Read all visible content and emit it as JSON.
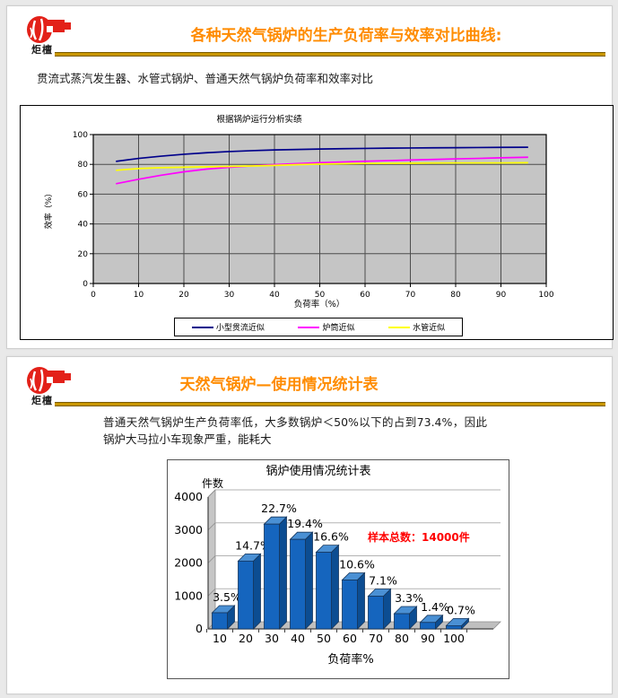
{
  "logo": {
    "brand": "炬檀"
  },
  "slide1": {
    "title": "各种天然气锅炉的生产负荷率与效率对比曲线:",
    "subtitle": "贯流式蒸汽发生器、水管式锅炉、普通天然气锅炉负荷率和效率对比"
  },
  "slide2": {
    "title": "天然气锅炉—使用情况统计表",
    "paragraph": "普通天然气锅炉生产负荷率低，大多数锅炉＜50%以下的占到73.4%，因此锅炉大马拉小车现象严重，能耗大"
  },
  "chart_data": [
    {
      "type": "line",
      "title": "根据锅炉运行分析实绩",
      "xlabel": "负荷率（%）",
      "ylabel": "效率（%）",
      "xlim": [
        0,
        100
      ],
      "ylim": [
        0,
        100
      ],
      "xticks": [
        0,
        10,
        20,
        30,
        40,
        50,
        60,
        70,
        80,
        90,
        100
      ],
      "yticks": [
        0,
        20,
        40,
        60,
        80,
        100
      ],
      "grid": true,
      "plot_bg": "#c5c5c5",
      "grid_color": "#4d4d4d",
      "legend_position": "bottom",
      "x": [
        5,
        10,
        15,
        20,
        25,
        30,
        35,
        40,
        45,
        50,
        55,
        60,
        65,
        70,
        75,
        80,
        85,
        90,
        96
      ],
      "series": [
        {
          "name": "小型贯流近似",
          "color": "#00008B",
          "y": [
            82,
            84,
            85.5,
            86.8,
            87.8,
            88.6,
            89.2,
            89.7,
            90,
            90.3,
            90.5,
            90.7,
            90.9,
            91,
            91.1,
            91.2,
            91.3,
            91.4,
            91.5
          ]
        },
        {
          "name": "炉筒近似",
          "color": "#FF00FF",
          "y": [
            67,
            70,
            72.7,
            75,
            76.8,
            78,
            79,
            79.8,
            80.5,
            81.1,
            81.6,
            82.1,
            82.5,
            82.9,
            83.3,
            83.7,
            84,
            84.4,
            84.8
          ]
        },
        {
          "name": "水管近似",
          "color": "#FFFF00",
          "y": [
            76,
            77.2,
            77.8,
            78.1,
            78.4,
            78.6,
            78.9,
            79.3,
            79.8,
            80.2,
            80.4,
            80.6,
            80.7,
            80.8,
            80.9,
            81,
            81,
            81,
            81.1
          ]
        }
      ]
    },
    {
      "type": "bar",
      "title": "锅炉使用情况统计表",
      "xlabel": "负荷率%",
      "ylabel": "件数",
      "categories": [
        "10",
        "20",
        "30",
        "40",
        "50",
        "60",
        "70",
        "80",
        "90",
        "100"
      ],
      "values": [
        490,
        2058,
        3178,
        2716,
        2324,
        1484,
        994,
        462,
        196,
        98
      ],
      "labels": [
        "3.5%",
        "14.7%",
        "22.7%",
        "19.4%",
        "16.6%",
        "10.6%",
        "7.1%",
        "3.3%",
        "1.4%",
        "0.7%"
      ],
      "annotation": "样本总数：14000件",
      "annotation_color": "#FF0000",
      "bar_color": "#1565BE",
      "bar_top_color": "#4A90D4",
      "bar_side_color": "#0C4D92",
      "ylim": [
        0,
        4000
      ],
      "yticks": [
        0,
        1000,
        2000,
        3000,
        4000
      ]
    }
  ]
}
